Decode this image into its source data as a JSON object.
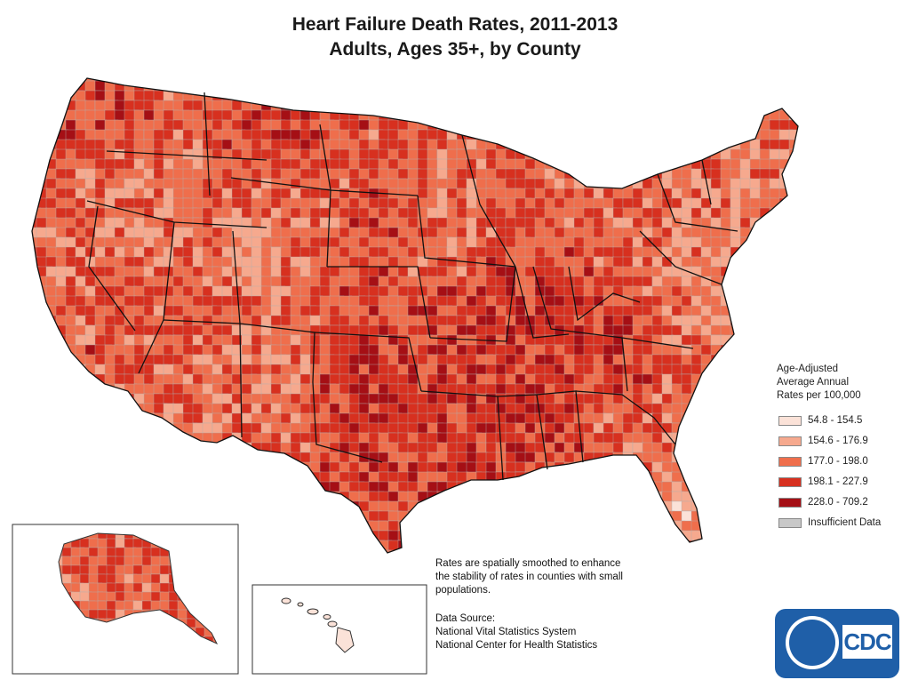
{
  "title": {
    "line1": "Heart Failure Death Rates, 2011-2013",
    "line2": "Adults, Ages 35+, by County"
  },
  "legend": {
    "title_lines": [
      "Age-Adjusted",
      "Average Annual",
      "Rates per 100,000"
    ],
    "items": [
      {
        "label": "54.8 - 154.5",
        "color": "#fbe2d8"
      },
      {
        "label": "154.6 - 176.9",
        "color": "#f6a98e"
      },
      {
        "label": "177.0 - 198.0",
        "color": "#ef6e4c"
      },
      {
        "label": "198.1 - 227.9",
        "color": "#d7301f"
      },
      {
        "label": "228.0 - 709.2",
        "color": "#a50f15"
      },
      {
        "label": "Insufficient Data",
        "color": "#c8c8c8"
      }
    ]
  },
  "note": {
    "lines": [
      "Rates are spatially smoothed to enhance",
      "the stability of rates in counties with small",
      "populations."
    ]
  },
  "source": {
    "lines": [
      "Data Source:",
      "National Vital Statistics System",
      "National Center for Health Statistics"
    ]
  },
  "logo": {
    "text": "CDC",
    "color": "#1f5fa8"
  }
}
